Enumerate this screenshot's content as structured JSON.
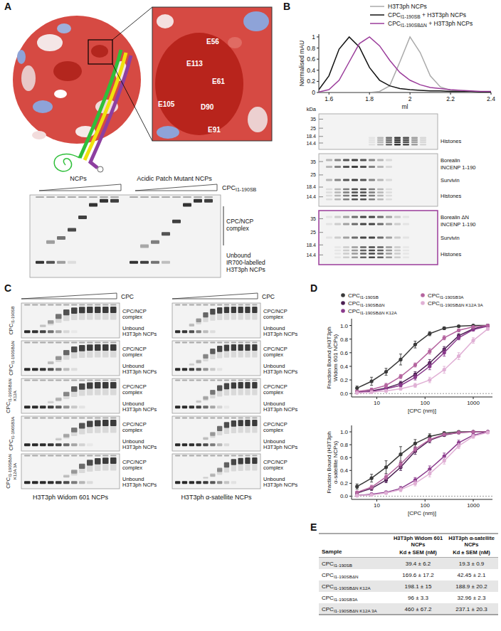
{
  "panel_labels": [
    "A",
    "B",
    "C",
    "D",
    "E"
  ],
  "panel_a": {
    "residues": [
      "E56",
      "E113",
      "E61",
      "E105",
      "D90",
      "E91"
    ],
    "gel_columns": [
      "NCPs",
      "Acidic Patch Mutant NCPs"
    ],
    "titrant": "CPCI1-190SB",
    "bands": [
      "CPC/NCP complex",
      "Unbound IR700-labelled H3T3ph NCPs"
    ]
  },
  "panel_b": {
    "size_unit": "kDa",
    "markers": [
      35,
      25,
      18.4,
      14.4
    ],
    "gels": [
      {
        "labels": [
          "Histones"
        ]
      },
      {
        "labels": [
          "Borealin",
          "INCENP 1-190",
          "Survivin",
          "Histones"
        ]
      },
      {
        "labels": [
          "Borealin ΔN",
          "INCENP 1-190",
          "Survivin",
          "Histones"
        ]
      }
    ]
  },
  "panel_c": {
    "titrant": "CPC",
    "rows": [
      "CPCI1-190SB",
      "CPCI1-190SBΔN",
      "CPCI1-190SBΔN K12A",
      "CPCI1-190SB3A",
      "CPCI1-190SBΔN K12A 3A"
    ],
    "bands": [
      "CPC/NCP complex",
      "Unbound H3T3ph NCPs"
    ],
    "columns": [
      "H3T3ph Widom 601 NCPs",
      "H3T3ph α-satellite NCPs"
    ]
  },
  "chart_data": [
    {
      "type": "line",
      "x_label": "ml",
      "y_label": "Normalised mAU",
      "legend": "top right",
      "x": [
        1.55,
        1.6,
        1.65,
        1.7,
        1.75,
        1.8,
        1.85,
        1.9,
        1.95,
        2.0,
        2.05,
        2.1,
        2.15,
        2.2,
        2.25,
        2.3,
        2.35,
        2.4
      ],
      "xlim": [
        1.55,
        2.4
      ],
      "xticks": [
        1.6,
        1.8,
        2,
        2.2,
        2.4
      ],
      "ylim": [
        0,
        1.05
      ],
      "yticks": [
        0,
        0.2,
        0.4,
        0.6,
        0.8,
        1
      ],
      "series": [
        {
          "name": "H3T3ph NCPs",
          "color": "#aaaaaa",
          "line_style": "solid",
          "values": [
            0,
            0,
            0,
            0,
            0,
            0,
            0.02,
            0.12,
            0.55,
            1.0,
            0.72,
            0.3,
            0.1,
            0.04,
            0.02,
            0.01,
            0,
            0
          ]
        },
        {
          "name": "CPCI1-190SB + H3T3ph NCPs",
          "color": "#111111",
          "line_style": "solid",
          "values": [
            0.05,
            0.3,
            0.78,
            1.0,
            0.82,
            0.45,
            0.22,
            0.12,
            0.07,
            0.05,
            0.04,
            0.03,
            0.03,
            0.02,
            0.02,
            0.02,
            0.01,
            0.01
          ]
        },
        {
          "name": "CPCI1-190SBΔN + H3T3ph NCPs",
          "color": "#9b3d9b",
          "line_style": "solid",
          "values": [
            0.01,
            0.05,
            0.22,
            0.55,
            0.88,
            1.0,
            0.84,
            0.58,
            0.36,
            0.22,
            0.14,
            0.09,
            0.07,
            0.05,
            0.04,
            0.03,
            0.02,
            0.02
          ]
        }
      ]
    },
    {
      "type": "line",
      "x_label": "[CPC (nm)]",
      "y_label": "Fraction Bound (H3T3ph Widom 601 NCPs)",
      "legend": "top",
      "log": "x",
      "x": [
        3.9,
        7.8,
        15.6,
        31.25,
        62.5,
        125,
        250,
        500,
        1000,
        2000
      ],
      "xlim": [
        3,
        2500
      ],
      "xticks": [
        10,
        100,
        1000
      ],
      "ylim": [
        -0.05,
        1.1
      ],
      "yticks": [
        {
          "value": 0,
          "label": "0.0"
        },
        0.2,
        0.4,
        0.6,
        0.8,
        {
          "value": 1,
          "label": "1.0"
        }
      ],
      "series": [
        {
          "name": "CPCI1-190SB",
          "color": "#3a3a3a",
          "marker": "circle",
          "values": [
            0.08,
            0.18,
            0.32,
            0.5,
            0.72,
            0.88,
            0.96,
            0.99,
            1.0,
            1.0
          ],
          "errors": [
            0.03,
            0.06,
            0.05,
            0.08,
            0.05,
            0.03,
            0.02,
            0.01,
            0.01,
            0.01
          ]
        },
        {
          "name": "CPCI1-190SBΔN",
          "color": "#4b1f52",
          "marker": "circle",
          "values": [
            0.02,
            0.04,
            0.08,
            0.15,
            0.28,
            0.45,
            0.65,
            0.85,
            0.95,
            1.0
          ],
          "errors": [
            0.02,
            0.02,
            0.03,
            0.03,
            0.04,
            0.05,
            0.04,
            0.03,
            0.02,
            0.01
          ]
        },
        {
          "name": "CPCI1-190SBΔN K12A",
          "color": "#8a3a8c",
          "marker": "circle",
          "values": [
            0.02,
            0.03,
            0.07,
            0.12,
            0.24,
            0.4,
            0.6,
            0.82,
            0.94,
            0.99
          ],
          "errors": [
            0.02,
            0.02,
            0.02,
            0.03,
            0.04,
            0.05,
            0.05,
            0.03,
            0.02,
            0.01
          ]
        },
        {
          "name": "CPCI1-190SB3A",
          "color": "#b5649f",
          "marker": "circle",
          "values": [
            0.03,
            0.06,
            0.12,
            0.25,
            0.42,
            0.62,
            0.82,
            0.93,
            0.98,
            1.0
          ],
          "errors": [
            0.02,
            0.02,
            0.03,
            0.03,
            0.03,
            0.04,
            0.03,
            0.02,
            0.01,
            0.01
          ]
        },
        {
          "name": "CPCI1-190SBΔN K12A 3A",
          "color": "#e0b0d5",
          "marker": "circle",
          "values": [
            0.01,
            0.02,
            0.04,
            0.07,
            0.12,
            0.2,
            0.35,
            0.55,
            0.78,
            0.95
          ],
          "errors": [
            0.01,
            0.02,
            0.02,
            0.02,
            0.03,
            0.04,
            0.05,
            0.05,
            0.04,
            0.02
          ]
        }
      ]
    },
    {
      "type": "line",
      "x_label": "[CPC (nm)]",
      "y_label": "Fraction Bound (H3T3ph α-satellite NCPs)",
      "log": "x",
      "x": [
        3.9,
        7.8,
        15.6,
        31.25,
        62.5,
        125,
        250,
        500,
        1000,
        2000
      ],
      "xlim": [
        3,
        2500
      ],
      "xticks": [
        10,
        100,
        1000
      ],
      "ylim": [
        -0.05,
        1.1
      ],
      "yticks": [
        {
          "value": 0,
          "label": "0.0"
        },
        0.2,
        0.4,
        0.6,
        0.8,
        {
          "value": 1,
          "label": "1.0"
        }
      ],
      "series": [
        {
          "color": "#3a3a3a",
          "marker": "circle",
          "values": [
            0.15,
            0.28,
            0.45,
            0.65,
            0.82,
            0.93,
            0.98,
            1.0,
            1.0,
            1.0
          ],
          "errors": [
            0.04,
            0.06,
            0.1,
            0.12,
            0.06,
            0.04,
            0.02,
            0.01,
            0.01,
            0.01
          ]
        },
        {
          "color": "#4b1f52",
          "marker": "circle",
          "values": [
            0.05,
            0.12,
            0.25,
            0.45,
            0.7,
            0.87,
            0.95,
            0.99,
            1.0,
            1.0
          ],
          "errors": [
            0.02,
            0.03,
            0.04,
            0.05,
            0.05,
            0.04,
            0.02,
            0.01,
            0.01,
            0.01
          ]
        },
        {
          "color": "#8a3a8c",
          "marker": "circle",
          "values": [
            0.01,
            0.03,
            0.06,
            0.12,
            0.25,
            0.42,
            0.62,
            0.83,
            0.95,
            1.0
          ],
          "errors": [
            0.01,
            0.02,
            0.02,
            0.03,
            0.04,
            0.05,
            0.05,
            0.04,
            0.02,
            0.01
          ]
        },
        {
          "color": "#b5649f",
          "marker": "circle",
          "values": [
            0.06,
            0.14,
            0.3,
            0.5,
            0.73,
            0.88,
            0.96,
            0.99,
            1.0,
            1.0
          ],
          "errors": [
            0.02,
            0.03,
            0.04,
            0.05,
            0.04,
            0.03,
            0.02,
            0.01,
            0.01,
            0.01
          ]
        },
        {
          "color": "#e0b0d5",
          "marker": "circle",
          "values": [
            0.01,
            0.02,
            0.05,
            0.1,
            0.2,
            0.35,
            0.55,
            0.78,
            0.93,
            0.99
          ],
          "errors": [
            0.01,
            0.01,
            0.02,
            0.03,
            0.04,
            0.05,
            0.05,
            0.04,
            0.03,
            0.01
          ]
        }
      ]
    }
  ],
  "table": {
    "header": [
      "Sample",
      "H3T3ph Widom 601 NCPs",
      "H3T3ph α-satellite NCPs"
    ],
    "subheader": "Kd ± SEM (nM)",
    "rows": [
      [
        "CPCI1-190SB",
        "39.4 ± 6.2",
        "19.3 ± 0.9"
      ],
      [
        "CPCI1-190SBΔN",
        "169.6 ± 17.2",
        "42.45 ± 2.1"
      ],
      [
        "CPCI1-190SBΔN K12A",
        "198.1 ± 15",
        "188.9 ± 20.2"
      ],
      [
        "CPCI1-190SB3A",
        "96 ± 3.3",
        "32.96 ± 2.3"
      ],
      [
        "CPCI1-190SBΔN K12A 3A",
        "460 ± 67.2",
        "237.1 ± 20.3"
      ]
    ]
  }
}
